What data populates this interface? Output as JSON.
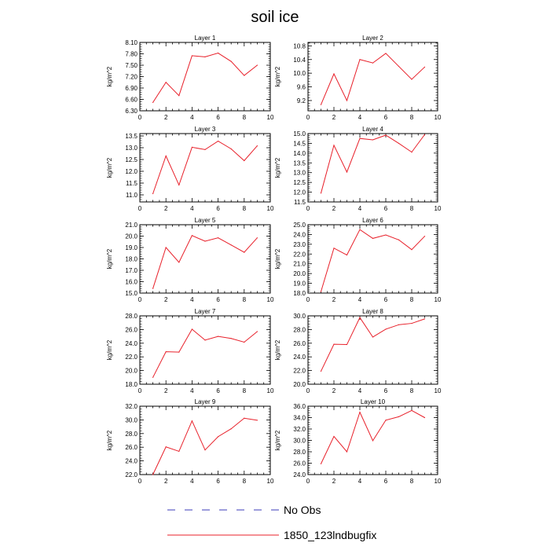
{
  "figure": {
    "title": "soil ice"
  },
  "legend": {
    "entries": [
      {
        "name": "No Obs",
        "color": "#3b3bb8",
        "style": "dashed"
      },
      {
        "name": "1850_123lndbugfix",
        "color": "#e8202a",
        "style": "solid"
      }
    ]
  },
  "chart_data": [
    {
      "type": "line",
      "title": "Layer 1",
      "ylabel": "kg/m^2",
      "xlim": [
        0,
        10
      ],
      "ylim": [
        6.3,
        8.1
      ],
      "xticks": [
        "0",
        "2",
        "4",
        "6",
        "8",
        "10"
      ],
      "yticks": [
        "6.30",
        "6.60",
        "6.90",
        "7.20",
        "7.50",
        "7.80",
        "8.10"
      ],
      "x": [
        1,
        2,
        3,
        4,
        5,
        6,
        7,
        8,
        9
      ],
      "series": [
        {
          "name": "1850_123lndbugfix",
          "values": [
            6.52,
            7.05,
            6.7,
            7.75,
            7.72,
            7.82,
            7.6,
            7.23,
            7.5
          ]
        }
      ]
    },
    {
      "type": "line",
      "title": "Layer 2",
      "ylabel": "kg/m^2",
      "xlim": [
        0,
        10
      ],
      "ylim": [
        8.9,
        10.9
      ],
      "xticks": [
        "0",
        "2",
        "4",
        "6",
        "8",
        "10"
      ],
      "yticks": [
        "9.2",
        "9.6",
        "10.0",
        "10.4",
        "10.8"
      ],
      "x": [
        1,
        2,
        3,
        4,
        5,
        6,
        7,
        8,
        9
      ],
      "series": [
        {
          "name": "1850_123lndbugfix",
          "values": [
            9.08,
            9.98,
            9.2,
            10.4,
            10.3,
            10.58,
            10.2,
            9.82,
            10.18
          ]
        }
      ]
    },
    {
      "type": "line",
      "title": "Layer 3",
      "ylabel": "kg/m^2",
      "xlim": [
        0,
        10
      ],
      "ylim": [
        10.7,
        13.6
      ],
      "xticks": [
        "0",
        "2",
        "4",
        "6",
        "8",
        "10"
      ],
      "yticks": [
        "11.0",
        "11.5",
        "12.0",
        "12.5",
        "13.0",
        "13.5"
      ],
      "x": [
        1,
        2,
        3,
        4,
        5,
        6,
        7,
        8,
        9
      ],
      "series": [
        {
          "name": "1850_123lndbugfix",
          "values": [
            11.05,
            12.65,
            11.42,
            13.02,
            12.92,
            13.28,
            12.95,
            12.45,
            13.08
          ]
        }
      ]
    },
    {
      "type": "line",
      "title": "Layer 4",
      "ylabel": "kg/m^2",
      "xlim": [
        0,
        10
      ],
      "ylim": [
        11.5,
        15.0
      ],
      "xticks": [
        "0",
        "2",
        "4",
        "6",
        "8",
        "10"
      ],
      "yticks": [
        "11.5",
        "12.0",
        "12.5",
        "13.0",
        "13.5",
        "14.0",
        "14.5",
        "15.0"
      ],
      "x": [
        1,
        2,
        3,
        4,
        5,
        6,
        7,
        8,
        9
      ],
      "series": [
        {
          "name": "1850_123lndbugfix",
          "values": [
            11.95,
            14.4,
            13.03,
            14.75,
            14.68,
            14.92,
            14.5,
            14.05,
            14.95
          ]
        }
      ]
    },
    {
      "type": "line",
      "title": "Layer 5",
      "ylabel": "kg/m^2",
      "xlim": [
        0,
        10
      ],
      "ylim": [
        15.0,
        21.0
      ],
      "xticks": [
        "0",
        "2",
        "4",
        "6",
        "8",
        "10"
      ],
      "yticks": [
        "15.0",
        "16.0",
        "17.0",
        "18.0",
        "19.0",
        "20.0",
        "21.0"
      ],
      "x": [
        1,
        2,
        3,
        4,
        5,
        6,
        7,
        8,
        9
      ],
      "series": [
        {
          "name": "1850_123lndbugfix",
          "values": [
            15.4,
            19.0,
            17.7,
            20.05,
            19.55,
            19.85,
            19.22,
            18.58,
            19.85
          ]
        }
      ]
    },
    {
      "type": "line",
      "title": "Layer 6",
      "ylabel": "kg/m^2",
      "xlim": [
        0,
        10
      ],
      "ylim": [
        18.0,
        25.0
      ],
      "xticks": [
        "0",
        "2",
        "4",
        "6",
        "8",
        "10"
      ],
      "yticks": [
        "18.0",
        "19.0",
        "20.0",
        "21.0",
        "22.0",
        "23.0",
        "24.0",
        "25.0"
      ],
      "x": [
        1,
        2,
        3,
        4,
        5,
        6,
        7,
        8,
        9
      ],
      "series": [
        {
          "name": "1850_123lndbugfix",
          "values": [
            18.15,
            22.6,
            21.9,
            24.5,
            23.6,
            23.95,
            23.45,
            22.45,
            23.82
          ]
        }
      ]
    },
    {
      "type": "line",
      "title": "Layer 7",
      "ylabel": "kg/m^2",
      "xlim": [
        0,
        10
      ],
      "ylim": [
        18.0,
        28.0
      ],
      "xticks": [
        "0",
        "2",
        "4",
        "6",
        "8",
        "10"
      ],
      "yticks": [
        "18.0",
        "20.0",
        "22.0",
        "24.0",
        "26.0",
        "28.0"
      ],
      "x": [
        1,
        2,
        3,
        4,
        5,
        6,
        7,
        8,
        9
      ],
      "series": [
        {
          "name": "1850_123lndbugfix",
          "values": [
            19.0,
            22.75,
            22.7,
            26.05,
            24.45,
            25.0,
            24.7,
            24.15,
            25.7
          ]
        }
      ]
    },
    {
      "type": "line",
      "title": "Layer 8",
      "ylabel": "kg/m^2",
      "xlim": [
        0,
        10
      ],
      "ylim": [
        20.0,
        30.0
      ],
      "xticks": [
        "0",
        "2",
        "4",
        "6",
        "8",
        "10"
      ],
      "yticks": [
        "20.0",
        "22.0",
        "24.0",
        "26.0",
        "28.0",
        "30.0"
      ],
      "x": [
        1,
        2,
        3,
        4,
        5,
        6,
        7,
        8,
        9
      ],
      "series": [
        {
          "name": "1850_123lndbugfix",
          "values": [
            21.9,
            25.85,
            25.8,
            29.75,
            26.9,
            28.05,
            28.7,
            28.9,
            29.55
          ]
        }
      ]
    },
    {
      "type": "line",
      "title": "Layer 9",
      "ylabel": "kg/m^2",
      "xlim": [
        0,
        10
      ],
      "ylim": [
        22.0,
        32.0
      ],
      "xticks": [
        "0",
        "2",
        "4",
        "6",
        "8",
        "10"
      ],
      "yticks": [
        "22.0",
        "24.0",
        "26.0",
        "28.0",
        "30.0",
        "32.0"
      ],
      "x": [
        1,
        2,
        3,
        4,
        5,
        6,
        7,
        8,
        9
      ],
      "series": [
        {
          "name": "1850_123lndbugfix",
          "values": [
            22.0,
            26.05,
            25.4,
            29.85,
            25.6,
            27.55,
            28.7,
            30.25,
            29.95
          ]
        }
      ]
    },
    {
      "type": "line",
      "title": "Layer 10",
      "ylabel": "kg/m^2",
      "xlim": [
        0,
        10
      ],
      "ylim": [
        24.0,
        36.0
      ],
      "xticks": [
        "0",
        "2",
        "4",
        "6",
        "8",
        "10"
      ],
      "yticks": [
        "24.0",
        "26.0",
        "28.0",
        "30.0",
        "32.0",
        "34.0",
        "36.0"
      ],
      "x": [
        1,
        2,
        3,
        4,
        5,
        6,
        7,
        8,
        9
      ],
      "series": [
        {
          "name": "1850_123lndbugfix",
          "values": [
            25.9,
            30.7,
            28.0,
            34.95,
            29.95,
            33.55,
            34.15,
            35.25,
            34.0
          ]
        }
      ]
    }
  ]
}
